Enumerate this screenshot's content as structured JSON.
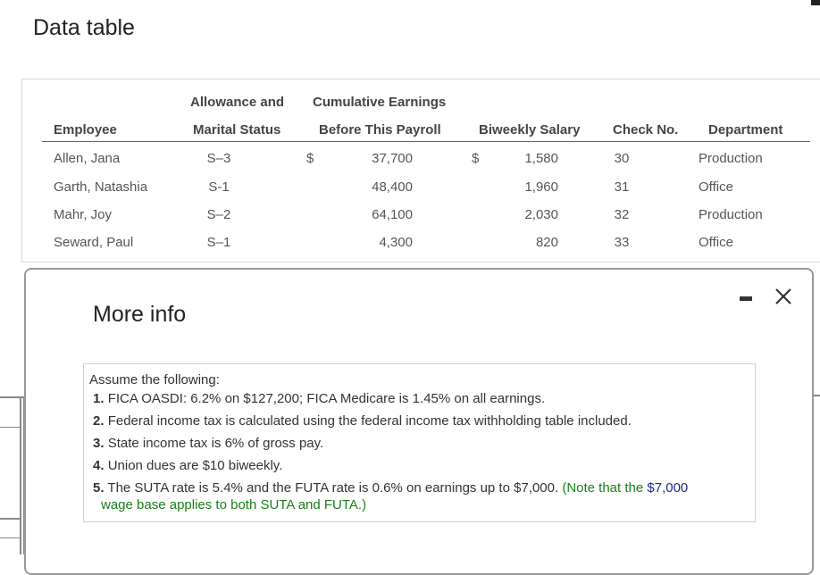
{
  "window": {
    "title": "Data table"
  },
  "table": {
    "headers": {
      "employee": "Employee",
      "allowance_line1": "Allowance and",
      "allowance_line2": "Marital Status",
      "cumulative_line1": "Cumulative Earnings",
      "cumulative_line2": "Before This Payroll",
      "biweekly": "Biweekly Salary",
      "check": "Check No.",
      "department": "Department"
    },
    "currency_symbol": "$",
    "rows": [
      {
        "employee": "Allen, Jana",
        "status": "S–3",
        "cumulative": "37,700",
        "salary": "1,580",
        "check": "30",
        "department": "Production"
      },
      {
        "employee": "Garth, Natashia",
        "status": "S-1",
        "cumulative": "48,400",
        "salary": "1,960",
        "check": "31",
        "department": "Office"
      },
      {
        "employee": "Mahr, Joy",
        "status": "S–2",
        "cumulative": "64,100",
        "salary": "2,030",
        "check": "32",
        "department": "Production"
      },
      {
        "employee": "Seward, Paul",
        "status": "S–1",
        "cumulative": "4,300",
        "salary": "820",
        "check": "33",
        "department": "Office"
      }
    ]
  },
  "modal": {
    "title": "More info",
    "intro": "Assume the following:",
    "items": [
      {
        "num": "1.",
        "text": "FICA OASDI: 6.2% on $127,200; FICA Medicare is 1.45% on all earnings."
      },
      {
        "num": "2.",
        "text": "Federal income tax is calculated using the federal income tax withholding table included."
      },
      {
        "num": "3.",
        "text": "State income tax is 6% of gross pay."
      },
      {
        "num": "4.",
        "text": "Union dues are $10 biweekly."
      },
      {
        "num": "5.",
        "text": "The SUTA rate is 5.4% and the FUTA rate is 0.6% on earnings up to $7,000.",
        "note_a": "(Note that the",
        "note_b": "$7,000",
        "note_c": "wage base applies to both SUTA and FUTA.)"
      }
    ]
  },
  "colors": {
    "note_green": "#1a7f1a",
    "note_navy": "#1b2b88"
  },
  "icons": {
    "minimize": "minimize-icon",
    "close": "close-icon"
  }
}
